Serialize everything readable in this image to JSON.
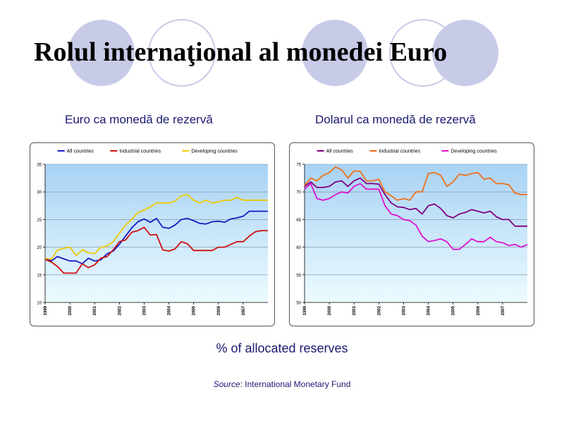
{
  "slide": {
    "title": "Rolul internaţional al monedei Euro",
    "caption": "% of allocated reserves",
    "source_label": "Source",
    "source_rest": ": International Monetary Fund"
  },
  "colors": {
    "circles": "#c8cbe8",
    "plot_top": "#a8d2f4",
    "plot_bottom": "#ecfbff"
  },
  "chart_data": [
    {
      "type": "line",
      "title": "Euro ca monedă de rezervă",
      "ylim": [
        10,
        35
      ],
      "yticks": [
        10,
        15,
        20,
        25,
        30,
        35
      ],
      "xlim": [
        1999,
        2008
      ],
      "xticks": [
        "1999",
        "2000",
        "2001",
        "2002",
        "2003",
        "2004",
        "2005",
        "2006",
        "2007"
      ],
      "legend_position": "top",
      "series": [
        {
          "name": "All countries",
          "color": "#1a1ac0",
          "x": [
            1999,
            1999.25,
            1999.5,
            1999.75,
            2000,
            2000.25,
            2000.5,
            2000.75,
            2001,
            2001.25,
            2001.5,
            2001.75,
            2002,
            2002.25,
            2002.5,
            2002.75,
            2003,
            2003.25,
            2003.5,
            2003.75,
            2004,
            2004.25,
            2004.5,
            2004.75,
            2005,
            2005.25,
            2005.5,
            2005.75,
            2006,
            2006.25,
            2006.5,
            2006.75,
            2007,
            2007.25,
            2007.5,
            2007.75,
            2008
          ],
          "y": [
            18,
            17.5,
            18.3,
            17.9,
            17.5,
            17.5,
            17,
            18,
            17.5,
            17.7,
            18.8,
            19.3,
            20.5,
            22,
            23.5,
            24.6,
            25.1,
            24.5,
            25.2,
            23.6,
            23.4,
            24,
            25,
            25.2,
            24.8,
            24.3,
            24.2,
            24.6,
            24.7,
            24.5,
            25.1,
            25.3,
            25.6,
            26.5,
            26.5,
            26.5,
            26.5
          ]
        },
        {
          "name": "Industrial countries",
          "color": "#d01010",
          "x": [
            1999,
            1999.25,
            1999.5,
            1999.75,
            2000,
            2000.25,
            2000.5,
            2000.75,
            2001,
            2001.25,
            2001.5,
            2001.75,
            2002,
            2002.25,
            2002.5,
            2002.75,
            2003,
            2003.25,
            2003.5,
            2003.75,
            2004,
            2004.25,
            2004.5,
            2004.75,
            2005,
            2005.25,
            2005.5,
            2005.75,
            2006,
            2006.25,
            2006.5,
            2006.75,
            2007,
            2007.25,
            2007.5,
            2007.75,
            2008
          ],
          "y": [
            17.8,
            17.3,
            16.5,
            15.3,
            15.3,
            15.3,
            17,
            16.3,
            16.8,
            18,
            18.3,
            19.5,
            21,
            21.3,
            22.7,
            23,
            23.6,
            22.2,
            22.3,
            19.5,
            19.3,
            19.7,
            21,
            20.6,
            19.4,
            19.4,
            19.4,
            19.4,
            20,
            20,
            20.5,
            21,
            21,
            22,
            22.8,
            23,
            23
          ]
        },
        {
          "name": "Developing countries",
          "color": "#f0c800",
          "x": [
            1999,
            1999.25,
            1999.5,
            1999.75,
            2000,
            2000.25,
            2000.5,
            2000.75,
            2001,
            2001.25,
            2001.5,
            2001.75,
            2002,
            2002.25,
            2002.5,
            2002.75,
            2003,
            2003.25,
            2003.5,
            2003.75,
            2004,
            2004.25,
            2004.5,
            2004.75,
            2005,
            2005.25,
            2005.5,
            2005.75,
            2006,
            2006.25,
            2006.5,
            2006.75,
            2007,
            2007.25,
            2007.5,
            2007.75,
            2008
          ],
          "y": [
            18,
            17.8,
            19.5,
            19.8,
            20,
            18.5,
            19.5,
            19,
            18.8,
            20,
            20.2,
            21,
            22.5,
            24,
            25,
            26.3,
            26.7,
            27.3,
            28,
            28,
            28,
            28.3,
            29.3,
            29.5,
            28.5,
            28,
            28.5,
            28,
            28.2,
            28.5,
            28.5,
            29,
            28.5,
            28.5,
            28.5,
            28.5,
            28.5
          ]
        }
      ]
    },
    {
      "type": "line",
      "title": "Dolarul ca monedă de rezervă",
      "ylim": [
        50,
        75
      ],
      "yticks": [
        50,
        55,
        60,
        65,
        70,
        75
      ],
      "xlim": [
        1999,
        2008
      ],
      "xticks": [
        "1999",
        "2000",
        "2001",
        "2002",
        "2003",
        "2004",
        "2005",
        "2006",
        "2007"
      ],
      "legend_position": "top",
      "series": [
        {
          "name": "All countries",
          "color": "#800080",
          "x": [
            1999,
            1999.25,
            1999.5,
            1999.75,
            2000,
            2000.25,
            2000.5,
            2000.75,
            2001,
            2001.25,
            2001.5,
            2001.75,
            2002,
            2002.25,
            2002.5,
            2002.75,
            2003,
            2003.25,
            2003.5,
            2003.75,
            2004,
            2004.25,
            2004.5,
            2004.75,
            2005,
            2005.25,
            2005.5,
            2005.75,
            2006,
            2006.25,
            2006.5,
            2006.75,
            2007,
            2007.25,
            2007.5,
            2007.75,
            2008
          ],
          "y": [
            71,
            71.8,
            70.8,
            70.8,
            71,
            71.8,
            72,
            71,
            72,
            72.5,
            71.5,
            71.5,
            71.4,
            69.5,
            68,
            67.3,
            67.2,
            66.8,
            67,
            66,
            67.5,
            67.8,
            67,
            65.7,
            65.3,
            66,
            66.3,
            66.8,
            66.5,
            66.2,
            66.5,
            65.5,
            65,
            65,
            63.8,
            63.8,
            63.8
          ]
        },
        {
          "name": "Industrial countries",
          "color": "#f07018",
          "x": [
            1999,
            1999.25,
            1999.5,
            1999.75,
            2000,
            2000.25,
            2000.5,
            2000.75,
            2001,
            2001.25,
            2001.5,
            2001.75,
            2002,
            2002.25,
            2002.5,
            2002.75,
            2003,
            2003.25,
            2003.5,
            2003.75,
            2004,
            2004.25,
            2004.5,
            2004.75,
            2005,
            2005.25,
            2005.5,
            2005.75,
            2006,
            2006.25,
            2006.5,
            2006.75,
            2007,
            2007.25,
            2007.5,
            2007.75,
            2008
          ],
          "y": [
            71.2,
            72.5,
            72,
            73,
            73.5,
            74.5,
            74,
            72.5,
            73.8,
            73.7,
            72,
            72,
            72.3,
            70,
            69.3,
            68.5,
            68.8,
            68.5,
            70,
            70,
            73.3,
            73.5,
            73,
            71,
            71.8,
            73.2,
            73,
            73.3,
            73.5,
            72.3,
            72.5,
            71.5,
            71.5,
            71.3,
            69.8,
            69.5,
            69.5
          ]
        },
        {
          "name": "Developing countries",
          "color": "#e010d0",
          "x": [
            1999,
            1999.25,
            1999.5,
            1999.75,
            2000,
            2000.25,
            2000.5,
            2000.75,
            2001,
            2001.25,
            2001.5,
            2001.75,
            2002,
            2002.25,
            2002.5,
            2002.75,
            2003,
            2003.25,
            2003.5,
            2003.75,
            2004,
            2004.25,
            2004.5,
            2004.75,
            2005,
            2005.25,
            2005.5,
            2005.75,
            2006,
            2006.25,
            2006.5,
            2006.75,
            2007,
            2007.25,
            2007.5,
            2007.75,
            2008
          ],
          "y": [
            70.5,
            71.5,
            68.8,
            68.5,
            68.8,
            69.5,
            70,
            69.8,
            71,
            71.5,
            70.5,
            70.5,
            70.5,
            67.5,
            66,
            65.7,
            65,
            64.8,
            64,
            62,
            61,
            61.2,
            61.5,
            61,
            59.6,
            59.6,
            60.5,
            61.5,
            61,
            61,
            61.8,
            61,
            60.8,
            60.3,
            60.5,
            60,
            60.5
          ]
        }
      ]
    }
  ]
}
